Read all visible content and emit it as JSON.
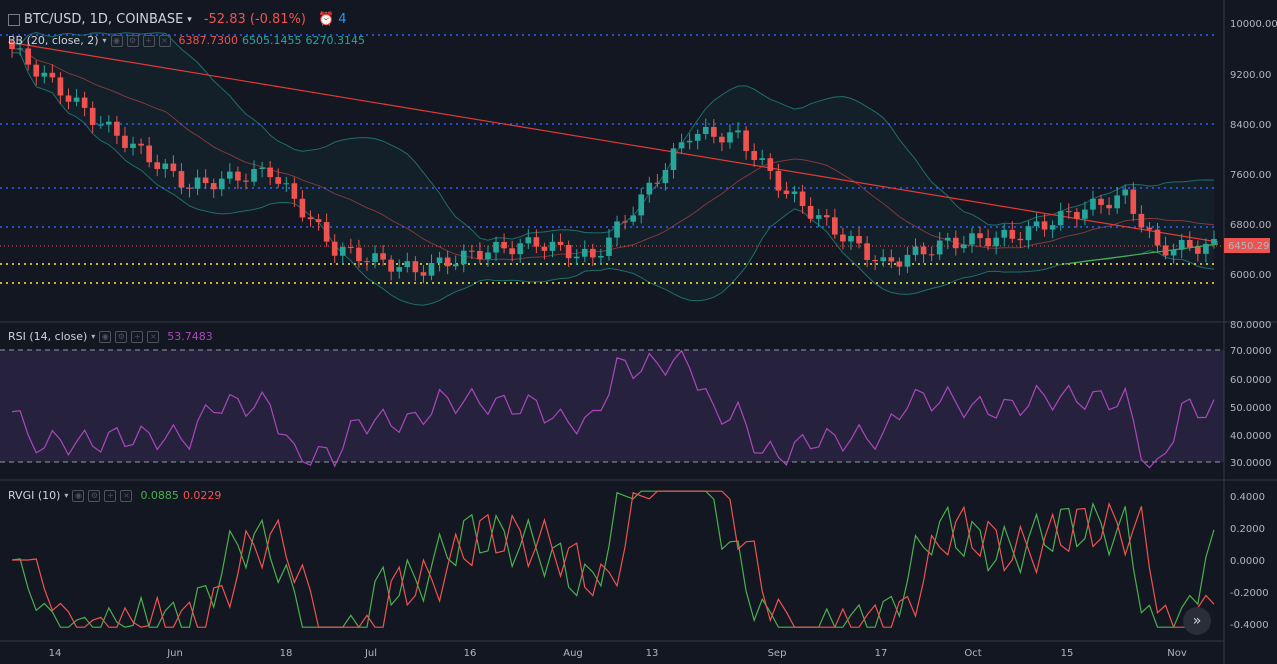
{
  "header": {
    "symbol": "BTC/USD, 1D, COINBASE",
    "change": "-52.83 (-0.81%)",
    "alerts": "4",
    "colors": {
      "down": "#ef5350",
      "up": "#26a69a"
    }
  },
  "bb": {
    "label": "BB (20, close, 2)",
    "values": [
      "6387.7300",
      "6505.1455",
      "6270.3145"
    ],
    "value_colors": [
      "#ef5350",
      "#26a69a",
      "#26a69a"
    ]
  },
  "rsi": {
    "label": "RSI (14, close)",
    "value": "53.7483",
    "color": "#9c27b0"
  },
  "rvgi": {
    "label": "RVGI (10)",
    "values": [
      "0.0885",
      "0.0229"
    ],
    "colors": [
      "#4caf50",
      "#ef5350"
    ]
  },
  "price_axis": [
    "10000.00",
    "9200.00",
    "8400.00",
    "7600.00",
    "6800.00",
    "6000.00"
  ],
  "price_badge": "6450.29",
  "rsi_axis": [
    "80.0000",
    "70.0000",
    "60.0000",
    "50.0000",
    "40.0000",
    "30.0000"
  ],
  "rvgi_axis": [
    "0.4000",
    "0.2000",
    "0.0000",
    "-0.2000",
    "-0.4000"
  ],
  "time_axis": [
    "14",
    "Jun",
    "18",
    "Jul",
    "16",
    "Aug",
    "13",
    "Sep",
    "17",
    "Oct",
    "15",
    "Nov"
  ],
  "scroll_button": "»"
}
